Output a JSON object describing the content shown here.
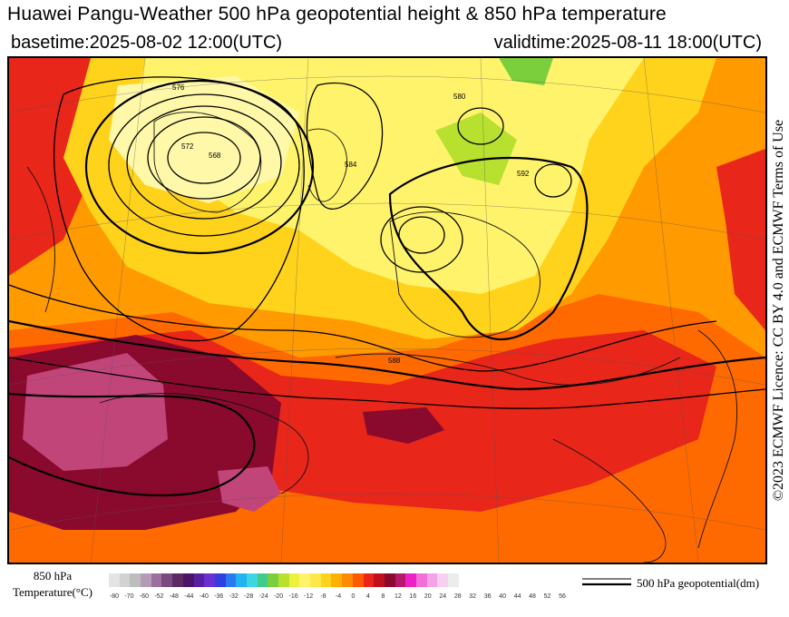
{
  "header": {
    "title": "Huawei Pangu-Weather 500 hPa geopotential height & 850 hPa temperature",
    "basetime": "basetime:2025-08-02 12:00(UTC)",
    "validtime": "validtime:2025-08-11 18:00(UTC)"
  },
  "license": "©2023 ECMWF Licence: CC BY 4.0 and ECMWF Terms of Use",
  "legend": {
    "temperature_label_line1": "850 hPa",
    "temperature_label_line2": "Temperature(°C)",
    "ticks": [
      "-80",
      "-70",
      "-60",
      "-52",
      "-48",
      "-44",
      "-40",
      "-36",
      "-32",
      "-28",
      "-24",
      "-20",
      "-16",
      "-12",
      "-8",
      "-4",
      "0",
      "4",
      "8",
      "12",
      "16",
      "20",
      "24",
      "28",
      "32",
      "36",
      "40",
      "44",
      "48",
      "52",
      "56"
    ],
    "colors": [
      "#e4e4e4",
      "#d2d2d2",
      "#bdbdbd",
      "#b39bb6",
      "#9b6f9e",
      "#7d4a80",
      "#5e2a63",
      "#4b1466",
      "#5a1fa0",
      "#6a30d0",
      "#2f3fe0",
      "#2c78f0",
      "#22b3f0",
      "#3bd6e0",
      "#40cc8a",
      "#7ccf3c",
      "#b8e02e",
      "#ecf23a",
      "#fff36b",
      "#ffe74a",
      "#ffd21c",
      "#ffb000",
      "#ff8c00",
      "#ff5a00",
      "#e8261a",
      "#c20f1e",
      "#8a0a2e",
      "#b4196b",
      "#ee20c8",
      "#f070d8",
      "#f4a4e6",
      "#f6d0ee",
      "#ececec"
    ],
    "geopotential_label": "500 hPa geopotential(dm)"
  },
  "map": {
    "contour_labels": [
      "584",
      "588",
      "592",
      "576",
      "580",
      "572",
      "568"
    ]
  }
}
